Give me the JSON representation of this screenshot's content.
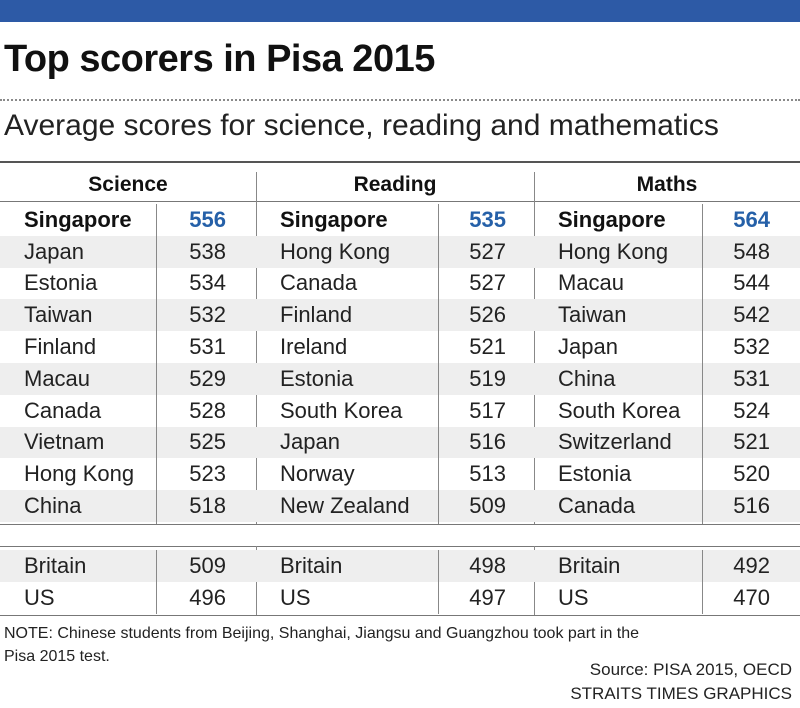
{
  "title": "Top scorers in Pisa 2015",
  "subtitle": "Average scores for science, reading and mathematics",
  "colors": {
    "top_bar": "#2d5aa6",
    "highlight_score": "#2560a8",
    "stripe": "#eeeeee"
  },
  "subjects": [
    {
      "name": "Science",
      "top10": [
        {
          "country": "Singapore",
          "score": "556"
        },
        {
          "country": "Japan",
          "score": "538"
        },
        {
          "country": "Estonia",
          "score": "534"
        },
        {
          "country": "Taiwan",
          "score": "532"
        },
        {
          "country": "Finland",
          "score": "531"
        },
        {
          "country": "Macau",
          "score": "529"
        },
        {
          "country": "Canada",
          "score": "528"
        },
        {
          "country": "Vietnam",
          "score": "525"
        },
        {
          "country": "Hong Kong",
          "score": "523"
        },
        {
          "country": "China",
          "score": "518"
        }
      ],
      "others": [
        {
          "country": "Britain",
          "score": "509"
        },
        {
          "country": "US",
          "score": "496"
        }
      ]
    },
    {
      "name": "Reading",
      "top10": [
        {
          "country": "Singapore",
          "score": "535"
        },
        {
          "country": "Hong Kong",
          "score": "527"
        },
        {
          "country": "Canada",
          "score": "527"
        },
        {
          "country": "Finland",
          "score": "526"
        },
        {
          "country": "Ireland",
          "score": "521"
        },
        {
          "country": "Estonia",
          "score": "519"
        },
        {
          "country": "South Korea",
          "score": "517"
        },
        {
          "country": "Japan",
          "score": "516"
        },
        {
          "country": "Norway",
          "score": "513"
        },
        {
          "country": "New Zealand",
          "score": "509"
        }
      ],
      "others": [
        {
          "country": "Britain",
          "score": "498"
        },
        {
          "country": "US",
          "score": "497"
        }
      ]
    },
    {
      "name": "Maths",
      "top10": [
        {
          "country": "Singapore",
          "score": "564"
        },
        {
          "country": "Hong Kong",
          "score": "548"
        },
        {
          "country": "Macau",
          "score": "544"
        },
        {
          "country": "Taiwan",
          "score": "542"
        },
        {
          "country": "Japan",
          "score": "532"
        },
        {
          "country": "China",
          "score": "531"
        },
        {
          "country": "South Korea",
          "score": "524"
        },
        {
          "country": "Switzerland",
          "score": "521"
        },
        {
          "country": "Estonia",
          "score": "520"
        },
        {
          "country": "Canada",
          "score": "516"
        }
      ],
      "others": [
        {
          "country": "Britain",
          "score": "492"
        },
        {
          "country": "US",
          "score": "470"
        }
      ]
    }
  ],
  "note": "NOTE: Chinese students from Beijing, Shanghai, Jiangsu and Guangzhou took part in the Pisa 2015 test.",
  "source": "Source: PISA 2015, OECD",
  "credit": "STRAITS TIMES GRAPHICS"
}
